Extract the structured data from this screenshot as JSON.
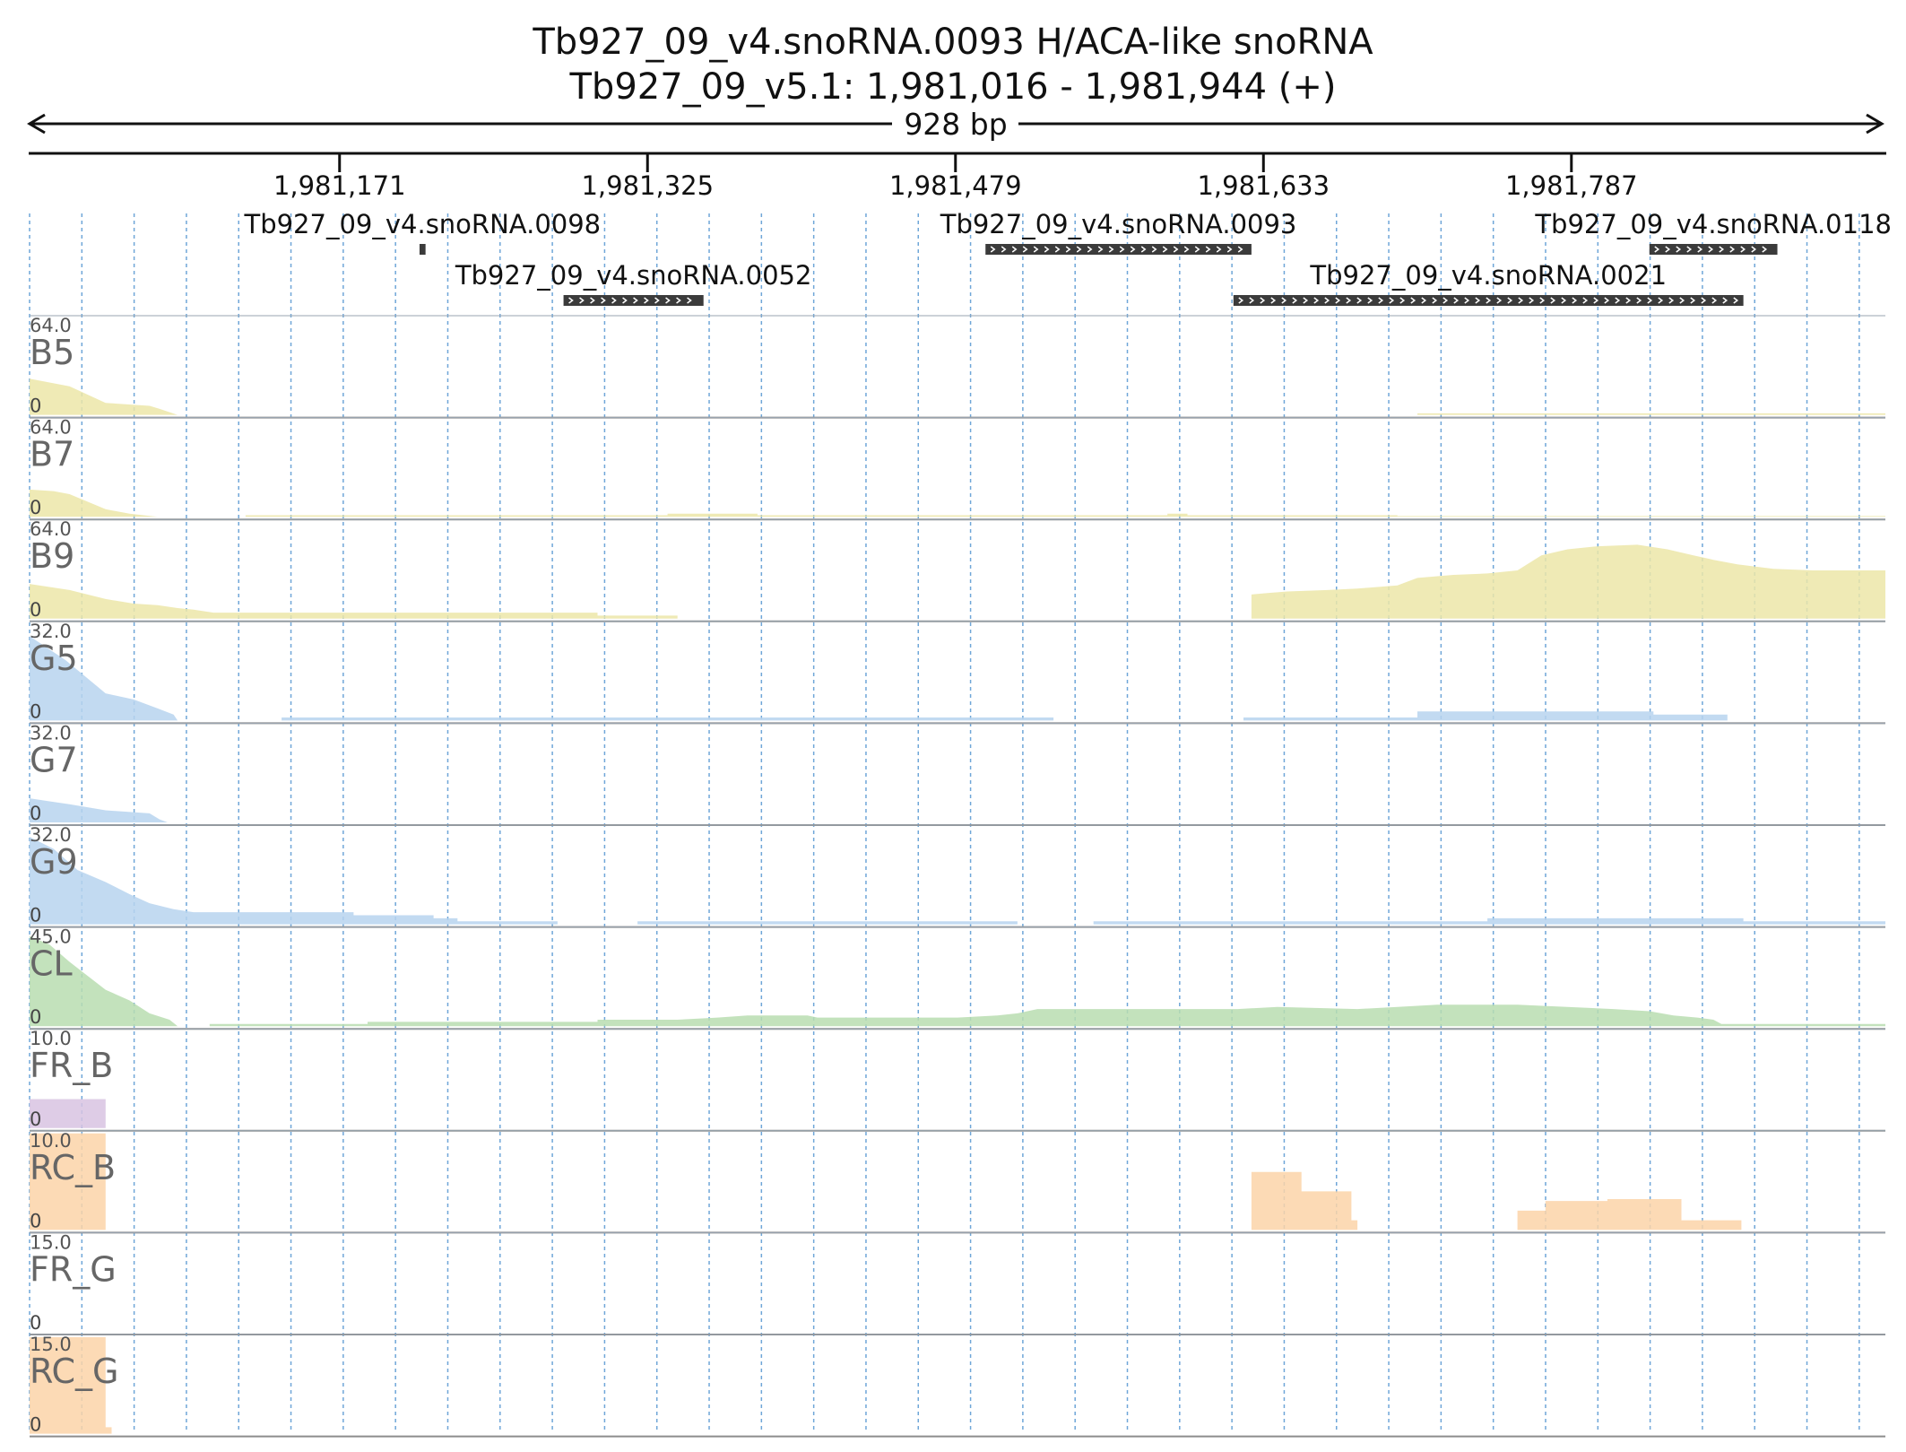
{
  "title": {
    "line1": "Tb927_09_v4.snoRNA.0093  H/ACA-like snoRNA",
    "line2": "Tb927_09_v5.1: 1,981,016 - 1,981,944 (+)"
  },
  "ruler": {
    "span_label": "928 bp"
  },
  "chart_data": {
    "type": "area",
    "x_range": [
      1981016,
      1981944
    ],
    "x_ticks": [
      {
        "value": 1981171,
        "label": "1,981,171"
      },
      {
        "value": 1981325,
        "label": "1,981,325"
      },
      {
        "value": 1981479,
        "label": "1,981,479"
      },
      {
        "value": 1981633,
        "label": "1,981,633"
      },
      {
        "value": 1981787,
        "label": "1,981,787"
      }
    ],
    "features": [
      {
        "name": "Tb927_09_v4.snoRNA.0098",
        "start": 1981211,
        "end": 1981214,
        "row": 0,
        "strand": "+"
      },
      {
        "name": "Tb927_09_v4.snoRNA.0052",
        "start": 1981283,
        "end": 1981353,
        "row": 1,
        "strand": "+"
      },
      {
        "name": "Tb927_09_v4.snoRNA.0093",
        "start": 1981494,
        "end": 1981627,
        "row": 0,
        "strand": "+"
      },
      {
        "name": "Tb927_09_v4.snoRNA.0021",
        "start": 1981618,
        "end": 1981873,
        "row": 1,
        "strand": "+"
      },
      {
        "name": "Tb927_09_v4.snoRNA.0118",
        "start": 1981826,
        "end": 1981890,
        "row": 0,
        "strand": "+"
      }
    ],
    "tracks": [
      {
        "name": "B5",
        "max_label": "64.0",
        "min_label": "0",
        "max": 64,
        "color": "#ece6a8",
        "points": [
          [
            1981016,
            24
          ],
          [
            1981036,
            19
          ],
          [
            1981054,
            8
          ],
          [
            1981076,
            6
          ],
          [
            1981081,
            4
          ],
          [
            1981090,
            0
          ],
          [
            1981710,
            0
          ],
          [
            1981710,
            1
          ],
          [
            1981944,
            1
          ]
        ]
      },
      {
        "name": "B7",
        "max_label": "64.0",
        "min_label": "0",
        "max": 64,
        "color": "#ece6a8",
        "points": [
          [
            1981016,
            18
          ],
          [
            1981028,
            17
          ],
          [
            1981036,
            15
          ],
          [
            1981054,
            5
          ],
          [
            1981066,
            2
          ],
          [
            1981080,
            0
          ],
          [
            1981124,
            0
          ],
          [
            1981124,
            1
          ],
          [
            1981335,
            1
          ],
          [
            1981335,
            2
          ],
          [
            1981380,
            2
          ],
          [
            1981380,
            1
          ],
          [
            1981585,
            1
          ],
          [
            1981585,
            2
          ],
          [
            1981595,
            2
          ],
          [
            1981595,
            1
          ],
          [
            1981700,
            1
          ],
          [
            1981700,
            0.5
          ],
          [
            1981944,
            0.5
          ]
        ]
      },
      {
        "name": "B9",
        "max_label": "64.0",
        "min_label": "0",
        "max": 64,
        "color": "#ece6a8",
        "points": [
          [
            1981016,
            23
          ],
          [
            1981036,
            19
          ],
          [
            1981054,
            13
          ],
          [
            1981068,
            10
          ],
          [
            1981080,
            9
          ],
          [
            1981090,
            7
          ],
          [
            1981098,
            6
          ],
          [
            1981108,
            4
          ],
          [
            1981300,
            4
          ],
          [
            1981300,
            2
          ],
          [
            1981340,
            2
          ],
          [
            1981340,
            0
          ],
          [
            1981627,
            0
          ],
          [
            1981627,
            16
          ],
          [
            1981635,
            17
          ],
          [
            1981645,
            18
          ],
          [
            1981665,
            19
          ],
          [
            1981680,
            20
          ],
          [
            1981700,
            22
          ],
          [
            1981710,
            27
          ],
          [
            1981728,
            29
          ],
          [
            1981745,
            30
          ],
          [
            1981760,
            32
          ],
          [
            1981772,
            42
          ],
          [
            1981785,
            46
          ],
          [
            1981800,
            48
          ],
          [
            1981820,
            49
          ],
          [
            1981835,
            46
          ],
          [
            1981848,
            42
          ],
          [
            1981858,
            39
          ],
          [
            1981870,
            36
          ],
          [
            1981888,
            33
          ],
          [
            1981908,
            32
          ],
          [
            1981944,
            32
          ]
        ]
      },
      {
        "name": "G5",
        "max_label": "32.0",
        "min_label": "0",
        "max": 32,
        "color": "#b7d4ef",
        "points": [
          [
            1981016,
            28
          ],
          [
            1981034,
            20
          ],
          [
            1981054,
            9
          ],
          [
            1981068,
            7
          ],
          [
            1981080,
            4
          ],
          [
            1981088,
            2
          ],
          [
            1981090,
            0
          ],
          [
            1981142,
            0
          ],
          [
            1981142,
            1
          ],
          [
            1981528,
            1
          ],
          [
            1981528,
            0
          ],
          [
            1981623,
            0
          ],
          [
            1981623,
            1
          ],
          [
            1981710,
            1
          ],
          [
            1981710,
            3
          ],
          [
            1981828,
            3
          ],
          [
            1981828,
            2
          ],
          [
            1981865,
            2
          ],
          [
            1981865,
            0
          ],
          [
            1981944,
            0
          ]
        ]
      },
      {
        "name": "G7",
        "max_label": "32.0",
        "min_label": "0",
        "max": 32,
        "color": "#b7d4ef",
        "points": [
          [
            1981016,
            8
          ],
          [
            1981026,
            7
          ],
          [
            1981036,
            6
          ],
          [
            1981054,
            4
          ],
          [
            1981076,
            3
          ],
          [
            1981081,
            1
          ],
          [
            1981085,
            0
          ],
          [
            1981944,
            0
          ]
        ]
      },
      {
        "name": "G9",
        "max_label": "32.0",
        "min_label": "0",
        "max": 32,
        "color": "#b7d4ef",
        "points": [
          [
            1981016,
            29
          ],
          [
            1981028,
            25
          ],
          [
            1981040,
            18
          ],
          [
            1981054,
            14
          ],
          [
            1981066,
            10
          ],
          [
            1981076,
            7
          ],
          [
            1981088,
            5
          ],
          [
            1981098,
            4
          ],
          [
            1981178,
            4
          ],
          [
            1981178,
            3
          ],
          [
            1981218,
            3
          ],
          [
            1981218,
            2
          ],
          [
            1981230,
            2
          ],
          [
            1981230,
            1
          ],
          [
            1981280,
            1
          ],
          [
            1981280,
            0
          ],
          [
            1981320,
            0
          ],
          [
            1981320,
            1
          ],
          [
            1981510,
            1
          ],
          [
            1981510,
            0
          ],
          [
            1981548,
            0
          ],
          [
            1981548,
            1
          ],
          [
            1981745,
            1
          ],
          [
            1981745,
            2
          ],
          [
            1981873,
            2
          ],
          [
            1981873,
            1
          ],
          [
            1981944,
            1
          ]
        ]
      },
      {
        "name": "CL",
        "max_label": "45.0",
        "min_label": "0",
        "max": 45,
        "color": "#b9ddb0",
        "points": [
          [
            1981016,
            42
          ],
          [
            1981026,
            38
          ],
          [
            1981036,
            30
          ],
          [
            1981054,
            17
          ],
          [
            1981066,
            12
          ],
          [
            1981076,
            6
          ],
          [
            1981086,
            3
          ],
          [
            1981090,
            0
          ],
          [
            1981106,
            0
          ],
          [
            1981106,
            1
          ],
          [
            1981185,
            1
          ],
          [
            1981185,
            2
          ],
          [
            1981300,
            2
          ],
          [
            1981300,
            3
          ],
          [
            1981340,
            3
          ],
          [
            1981360,
            4
          ],
          [
            1981375,
            5
          ],
          [
            1981405,
            5
          ],
          [
            1981410,
            4
          ],
          [
            1981480,
            4
          ],
          [
            1981500,
            5
          ],
          [
            1981510,
            6
          ],
          [
            1981520,
            8
          ],
          [
            1981540,
            8
          ],
          [
            1981620,
            8
          ],
          [
            1981640,
            9
          ],
          [
            1981680,
            8
          ],
          [
            1981700,
            9
          ],
          [
            1981720,
            10
          ],
          [
            1981760,
            10
          ],
          [
            1981785,
            9
          ],
          [
            1981808,
            8
          ],
          [
            1981826,
            7
          ],
          [
            1981838,
            5
          ],
          [
            1981850,
            4
          ],
          [
            1981858,
            3
          ],
          [
            1981862,
            1
          ],
          [
            1981944,
            1
          ]
        ]
      },
      {
        "name": "FR_B",
        "max_label": "10.0",
        "min_label": "0",
        "max": 10,
        "color": "#d8c3e2",
        "points": [
          [
            1981016,
            3
          ],
          [
            1981054,
            3
          ],
          [
            1981054,
            0
          ],
          [
            1981944,
            0
          ]
        ]
      },
      {
        "name": "RC_B",
        "max_label": "10.0",
        "min_label": "0",
        "max": 10,
        "color": "#fbd4a8",
        "points": [
          [
            1981016,
            10
          ],
          [
            1981054,
            10
          ],
          [
            1981054,
            0
          ],
          [
            1981627,
            0
          ],
          [
            1981627,
            6
          ],
          [
            1981652,
            6
          ],
          [
            1981652,
            4
          ],
          [
            1981677,
            4
          ],
          [
            1981677,
            1
          ],
          [
            1981680,
            1
          ],
          [
            1981680,
            0
          ],
          [
            1981760,
            0
          ],
          [
            1981760,
            2
          ],
          [
            1981774,
            2
          ],
          [
            1981774,
            3
          ],
          [
            1981805,
            3
          ],
          [
            1981805,
            3.2
          ],
          [
            1981842,
            3.2
          ],
          [
            1981842,
            1
          ],
          [
            1981872,
            1
          ],
          [
            1981872,
            0
          ],
          [
            1981944,
            0
          ]
        ]
      },
      {
        "name": "FR_G",
        "max_label": "15.0",
        "min_label": "0",
        "max": 15,
        "color": "#d8c3e2",
        "points": [
          [
            1981016,
            0
          ],
          [
            1981944,
            0
          ]
        ]
      },
      {
        "name": "RC_G",
        "max_label": "15.0",
        "min_label": "0",
        "max": 15,
        "color": "#fbd4a8",
        "points": [
          [
            1981016,
            15
          ],
          [
            1981054,
            15
          ],
          [
            1981054,
            1
          ],
          [
            1981057,
            1
          ],
          [
            1981057,
            0
          ],
          [
            1981944,
            0
          ]
        ]
      }
    ]
  }
}
